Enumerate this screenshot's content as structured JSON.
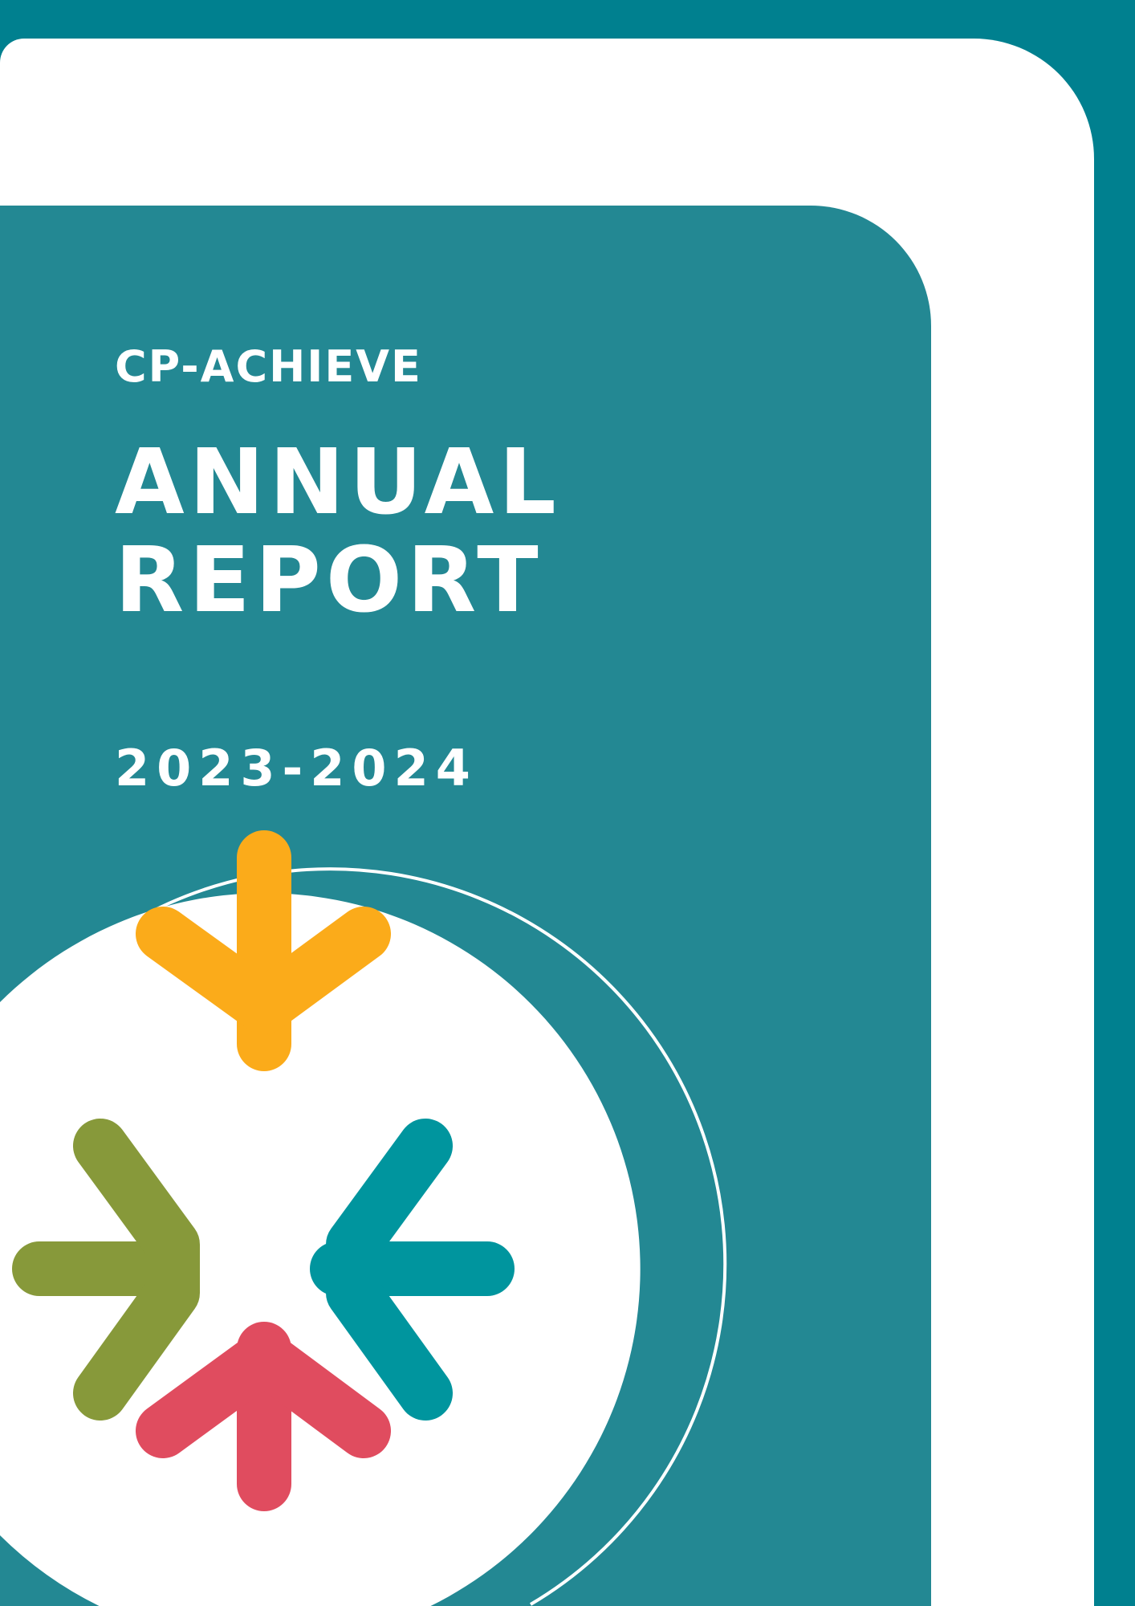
{
  "cover": {
    "brand": "CP-ACHIEVE",
    "title_line1": "ANNUAL",
    "title_line2": "REPORT",
    "years": "2023-2024"
  },
  "colors": {
    "background": "#00808f",
    "panel": "#238893",
    "card": "#ffffff",
    "arrow_top": "#fbab1a",
    "arrow_left": "#87993a",
    "arrow_right": "#00959e",
    "arrow_bottom": "#e04c5f"
  },
  "logo": {
    "icon": "four-converging-arrows-icon"
  }
}
